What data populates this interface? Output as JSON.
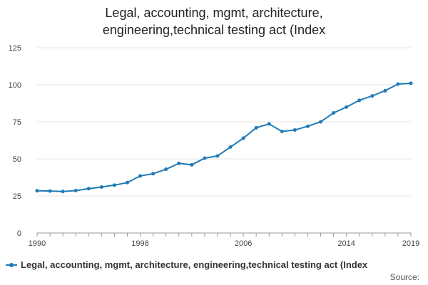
{
  "chart_data": {
    "type": "line",
    "title_lines": [
      "Legal, accounting, mgmt, architecture,",
      "engineering,technical testing act (Index"
    ],
    "xlabel": "",
    "ylabel": "",
    "xlim": [
      1990,
      2019
    ],
    "ylim": [
      0,
      125
    ],
    "y_ticks": [
      0,
      25,
      50,
      75,
      100,
      125
    ],
    "x_ticks": [
      1990,
      1998,
      2006,
      2014,
      2019
    ],
    "grid": "horizontal",
    "legend_position": "bottom",
    "series": [
      {
        "name": "Legal, accounting, mgmt, architecture, engineering,technical testing act (Index",
        "color": "#1f7ab8",
        "x": [
          1990,
          1991,
          1992,
          1993,
          1994,
          1995,
          1996,
          1997,
          1998,
          1999,
          2000,
          2001,
          2002,
          2003,
          2004,
          2005,
          2006,
          2007,
          2008,
          2009,
          2010,
          2011,
          2012,
          2013,
          2014,
          2015,
          2016,
          2017,
          2018,
          2019
        ],
        "values": [
          28.5,
          28.3,
          28.0,
          28.6,
          29.9,
          31.0,
          32.3,
          34.0,
          38.5,
          40.0,
          43.0,
          47.0,
          46.0,
          50.5,
          52.0,
          58.0,
          64.0,
          71.0,
          73.6,
          68.5,
          69.5,
          72.0,
          75.0,
          81.0,
          85.0,
          89.5,
          92.5,
          96.0,
          100.5,
          101.0
        ]
      }
    ]
  },
  "source_label": "Source:"
}
